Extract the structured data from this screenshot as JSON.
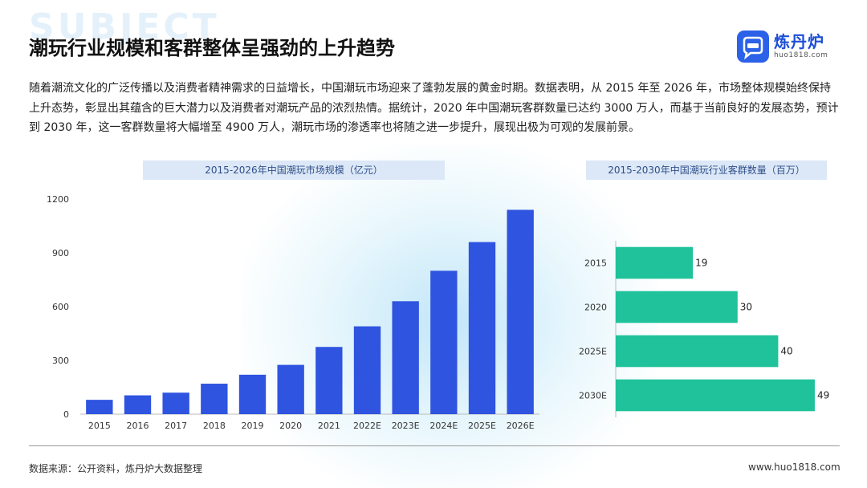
{
  "header": {
    "watermark": "SUBJECT",
    "title": "潮玩行业规模和客群整体呈强劲的上升趋势"
  },
  "logo": {
    "icon": "chat-data-icon",
    "name": "炼丹炉",
    "url": "huo1818.com"
  },
  "paragraph": "随着潮流文化的广泛传播以及消费者精神需求的日益增长，中国潮玩市场迎来了蓬勃发展的黄金时期。数据表明，从 2015 年至 2026 年，市场整体规模始终保持上升态势，彰显出其蕴含的巨大潜力以及消费者对潮玩产品的浓烈热情。据统计，2020 年中国潮玩客群数量已达约 3000 万人，而基于当前良好的发展态势，预计到 2030 年，这一客群数量将大幅增至 4900 万人，潮玩市场的渗透率也将随之进一步提升，展现出极为可观的发展前景。",
  "chart_data": [
    {
      "type": "bar",
      "title": "2015-2026年中国潮玩市场规模（亿元）",
      "categories": [
        "2015",
        "2016",
        "2017",
        "2018",
        "2019",
        "2020",
        "2021",
        "2022E",
        "2023E",
        "2024E",
        "2025E",
        "2026E"
      ],
      "values": [
        80,
        105,
        120,
        170,
        220,
        275,
        375,
        490,
        630,
        800,
        960,
        1140
      ],
      "ylim": [
        0,
        1200
      ],
      "yticks": [
        "0",
        "300",
        "600",
        "900",
        "1200"
      ],
      "color": "#2f54e0",
      "grid": false
    },
    {
      "type": "bar",
      "orientation": "horizontal",
      "title": "2015-2030年中国潮玩行业客群数量（百万）",
      "categories": [
        "2015",
        "2020",
        "2025E",
        "2030E"
      ],
      "values": [
        19,
        30,
        40,
        49
      ],
      "labels": [
        "19",
        "30",
        "40",
        "49"
      ],
      "xlim": [
        0,
        50
      ],
      "color": "#1fc29a",
      "grid": false
    }
  ],
  "footer": {
    "source": "数据来源：公开资料，炼丹炉大数据整理",
    "site": "www.huo1818.com"
  }
}
